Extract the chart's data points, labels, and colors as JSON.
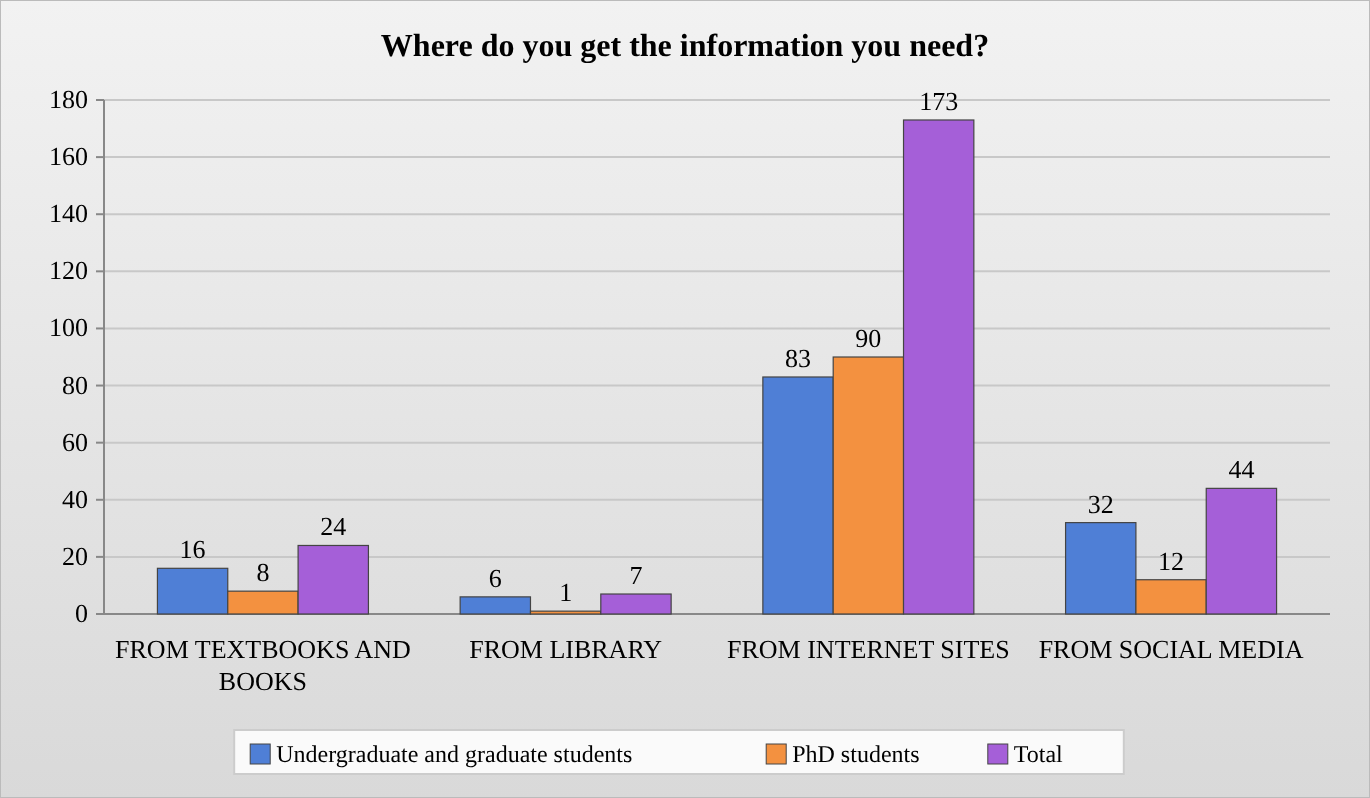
{
  "chart_data": {
    "type": "bar",
    "title": "Where do you get the information you need?",
    "categories": [
      "FROM TEXTBOOKS AND BOOKS",
      "FROM LIBRARY",
      "FROM INTERNET SITES",
      "FROM SOCIAL MEDIA"
    ],
    "series": [
      {
        "name": "Undergraduate and graduate students",
        "color": "#4f7fd6",
        "values": [
          16,
          6,
          83,
          32
        ]
      },
      {
        "name": "PhD students",
        "color": "#f39140",
        "values": [
          8,
          1,
          90,
          12
        ]
      },
      {
        "name": "Total",
        "color": "#a55fd8",
        "values": [
          24,
          7,
          173,
          44
        ]
      }
    ],
    "ylim": [
      0,
      180
    ],
    "yticks": [
      0,
      20,
      40,
      60,
      80,
      100,
      120,
      140,
      160,
      180
    ],
    "grid": "y",
    "legend": "bottom",
    "data_labels": true
  }
}
